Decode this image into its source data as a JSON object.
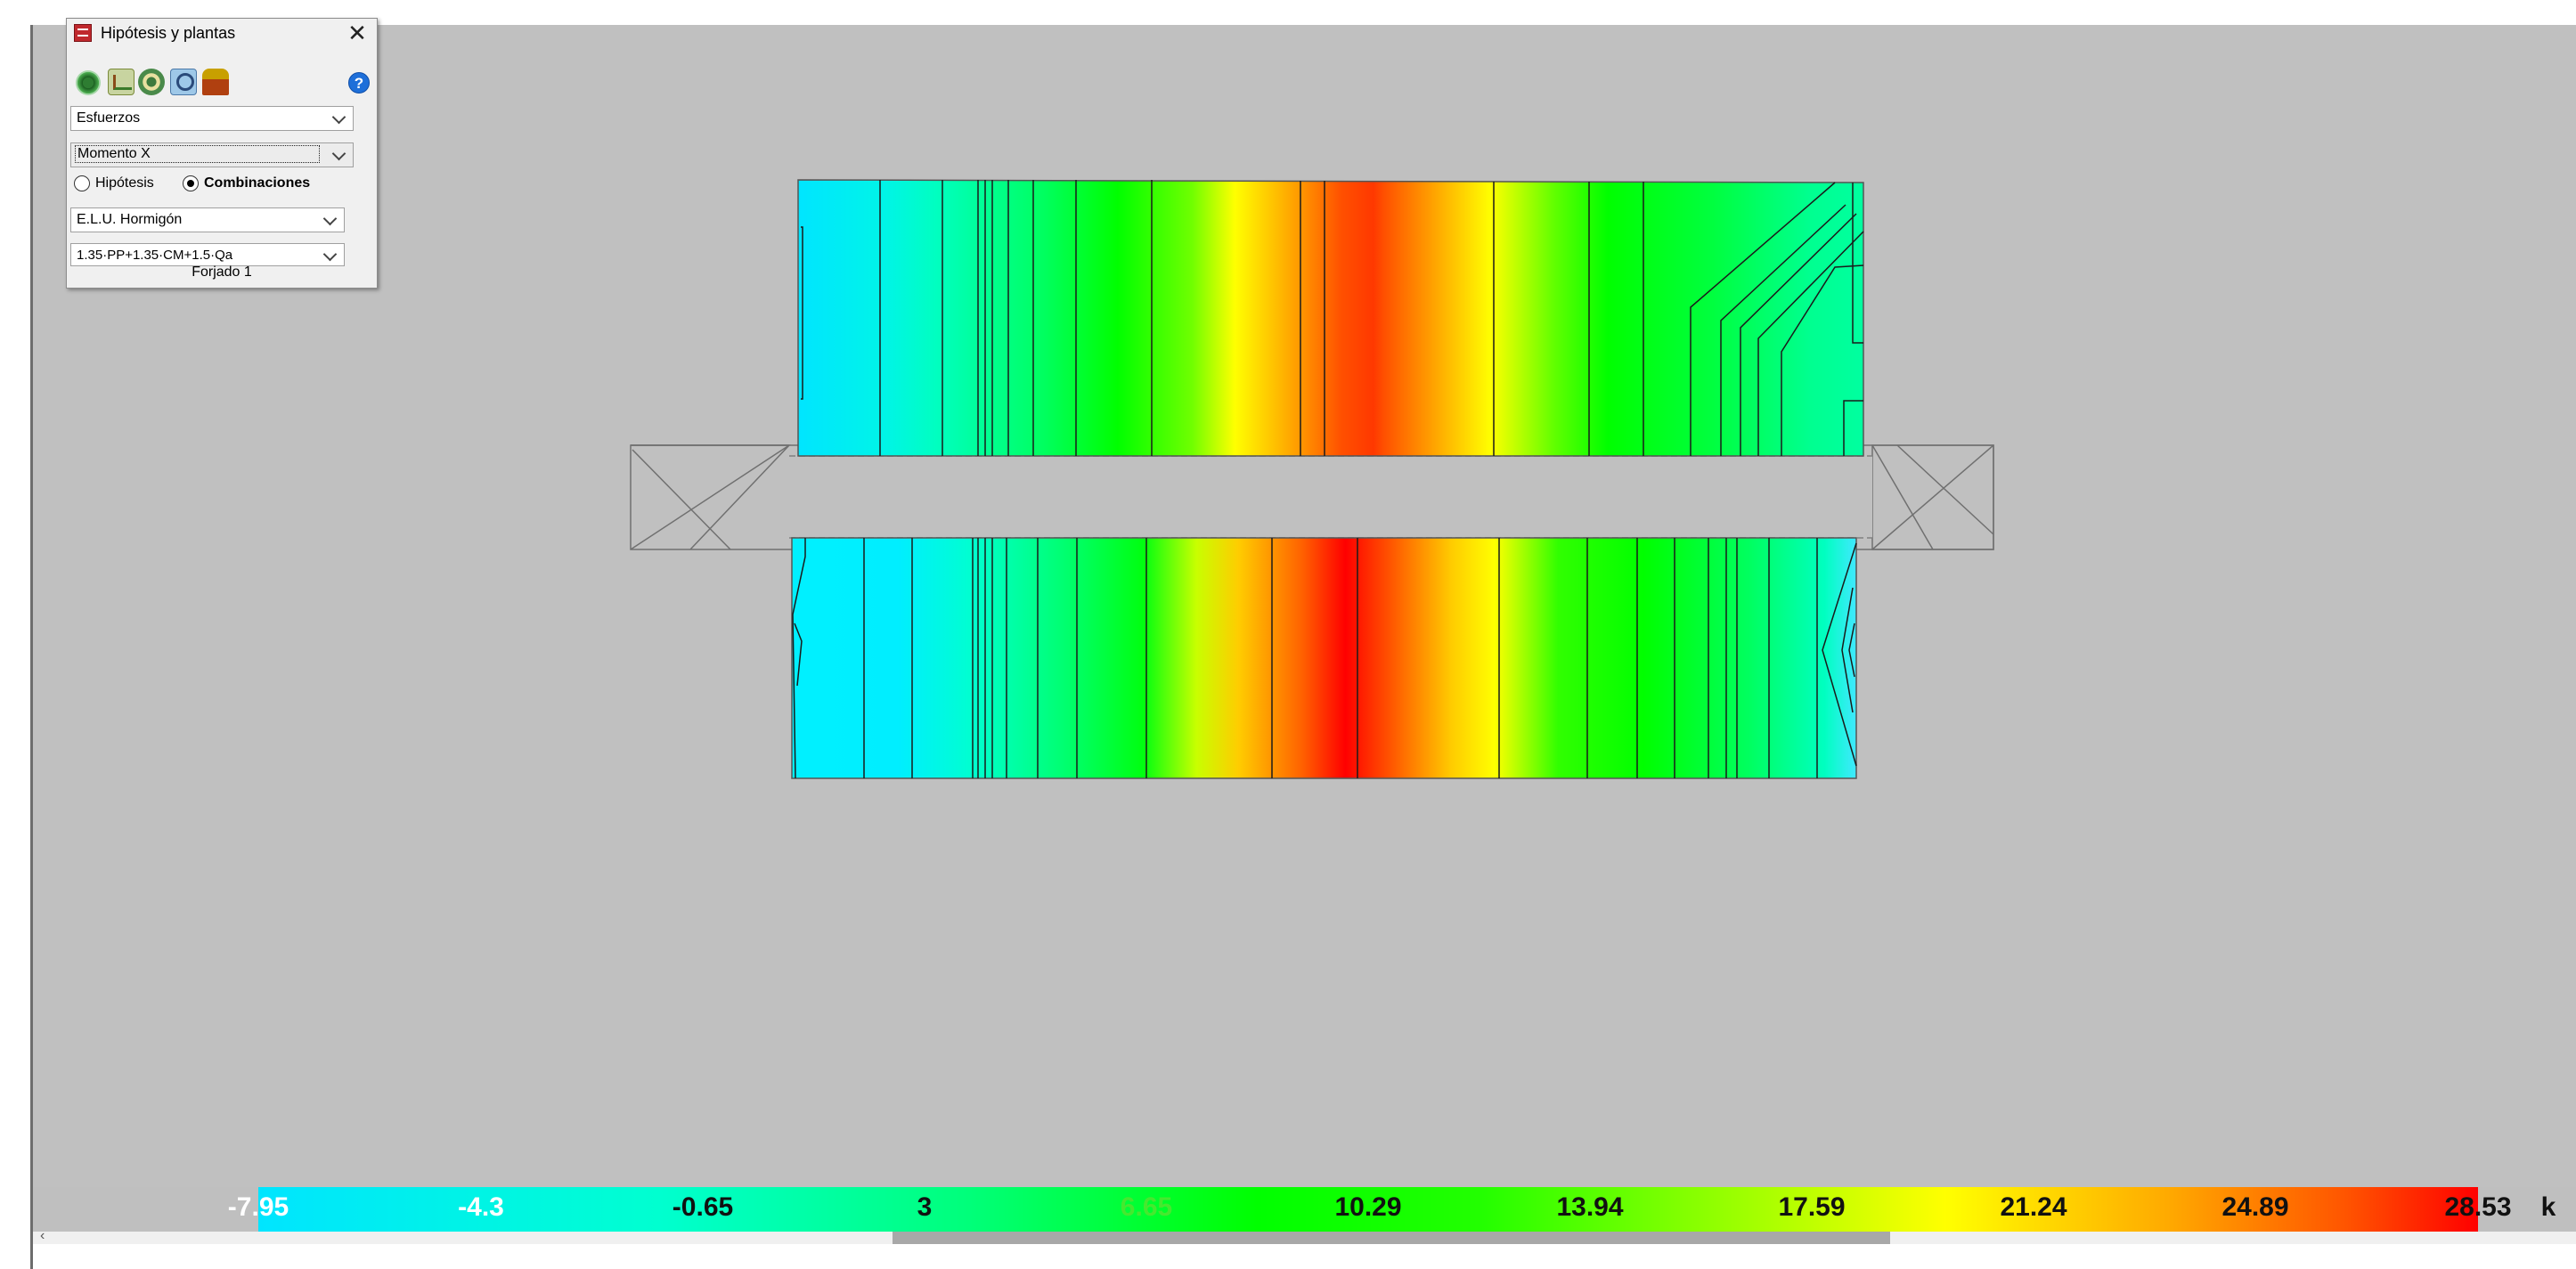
{
  "panel": {
    "title": "Hipótesis y plantas",
    "close_glyph": "✕",
    "help_glyph": "?",
    "result_type": "Esfuerzos",
    "component": "Momento X",
    "radio_hypothesis": "Hipótesis",
    "radio_combinations": "Combinaciones",
    "selected_radio": "combinations",
    "combination_group": "E.L.U. Hormigón",
    "combination": "1.35·PP+1.35·CM+1.5·Qa",
    "floor": "Forjado 1",
    "toolbar_icons": [
      "results-icon",
      "floor-plan-icon",
      "target-icon",
      "zoom-search-icon",
      "building-icon"
    ]
  },
  "legend": {
    "values": [
      "-7.95",
      "-4.3",
      "-0.65",
      "3",
      "6.65",
      "10.29",
      "13.94",
      "17.59",
      "21.24",
      "24.89",
      "28.53"
    ],
    "unit_fragment": "k"
  },
  "scrollbar": {
    "left_arrow": "‹"
  },
  "colors": {
    "viewport": "#c0c0c0",
    "scale": [
      "#00e5ff",
      "#00ff7a",
      "#00ff00",
      "#aaff00",
      "#ffff00",
      "#ffaa00",
      "#ff0000"
    ]
  }
}
